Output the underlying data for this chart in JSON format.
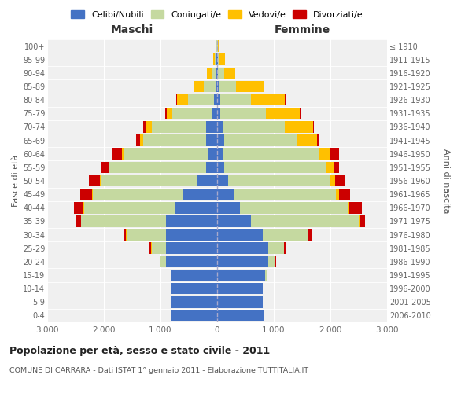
{
  "age_groups": [
    "0-4",
    "5-9",
    "10-14",
    "15-19",
    "20-24",
    "25-29",
    "30-34",
    "35-39",
    "40-44",
    "45-49",
    "50-54",
    "55-59",
    "60-64",
    "65-69",
    "70-74",
    "75-79",
    "80-84",
    "85-89",
    "90-94",
    "95-99",
    "100+"
  ],
  "birth_years": [
    "2006-2010",
    "2001-2005",
    "1996-2000",
    "1991-1995",
    "1986-1990",
    "1981-1985",
    "1976-1980",
    "1971-1975",
    "1966-1970",
    "1961-1965",
    "1956-1960",
    "1951-1955",
    "1946-1950",
    "1941-1945",
    "1936-1940",
    "1931-1935",
    "1926-1930",
    "1921-1925",
    "1916-1920",
    "1911-1915",
    "≤ 1910"
  ],
  "male": {
    "celibi": [
      820,
      800,
      800,
      800,
      900,
      900,
      900,
      900,
      750,
      600,
      350,
      200,
      150,
      200,
      200,
      90,
      60,
      30,
      25,
      10,
      5
    ],
    "coniugati": [
      5,
      5,
      10,
      15,
      100,
      250,
      700,
      1500,
      1600,
      1600,
      1700,
      1700,
      1500,
      1100,
      950,
      700,
      450,
      200,
      70,
      25,
      10
    ],
    "vedovi": [
      0,
      0,
      0,
      0,
      5,
      10,
      5,
      5,
      5,
      10,
      15,
      20,
      30,
      60,
      100,
      100,
      200,
      180,
      80,
      30,
      5
    ],
    "divorziati": [
      0,
      0,
      0,
      0,
      10,
      30,
      50,
      100,
      170,
      200,
      200,
      130,
      180,
      70,
      60,
      20,
      10,
      10,
      5,
      0,
      0
    ]
  },
  "female": {
    "nubili": [
      830,
      800,
      800,
      850,
      900,
      900,
      800,
      600,
      400,
      300,
      200,
      130,
      100,
      120,
      100,
      60,
      50,
      30,
      20,
      10,
      5
    ],
    "coniugate": [
      5,
      5,
      10,
      20,
      120,
      280,
      800,
      1900,
      1900,
      1800,
      1800,
      1800,
      1700,
      1300,
      1100,
      800,
      550,
      300,
      100,
      30,
      10
    ],
    "vedove": [
      0,
      0,
      0,
      0,
      5,
      5,
      10,
      15,
      30,
      50,
      80,
      120,
      200,
      350,
      500,
      600,
      600,
      500,
      200,
      100,
      20
    ],
    "divorziate": [
      0,
      0,
      0,
      0,
      10,
      30,
      50,
      100,
      220,
      200,
      180,
      100,
      150,
      20,
      10,
      10,
      10,
      10,
      5,
      0,
      0
    ]
  },
  "colors": {
    "celibi": "#4472c4",
    "coniugati": "#c5d9a0",
    "vedovi": "#ffc000",
    "divorziati": "#cc0000"
  },
  "title": "Popolazione per età, sesso e stato civile - 2011",
  "subtitle": "COMUNE DI CARRARA - Dati ISTAT 1° gennaio 2011 - Elaborazione TUTTITALIA.IT",
  "xlabel_left": "Maschi",
  "xlabel_right": "Femmine",
  "ylabel_left": "Fasce di età",
  "ylabel_right": "Anni di nascita",
  "xlim": 3000,
  "background_color": "#ffffff",
  "plot_bg_color": "#f0f0f0",
  "grid_color": "#ffffff"
}
